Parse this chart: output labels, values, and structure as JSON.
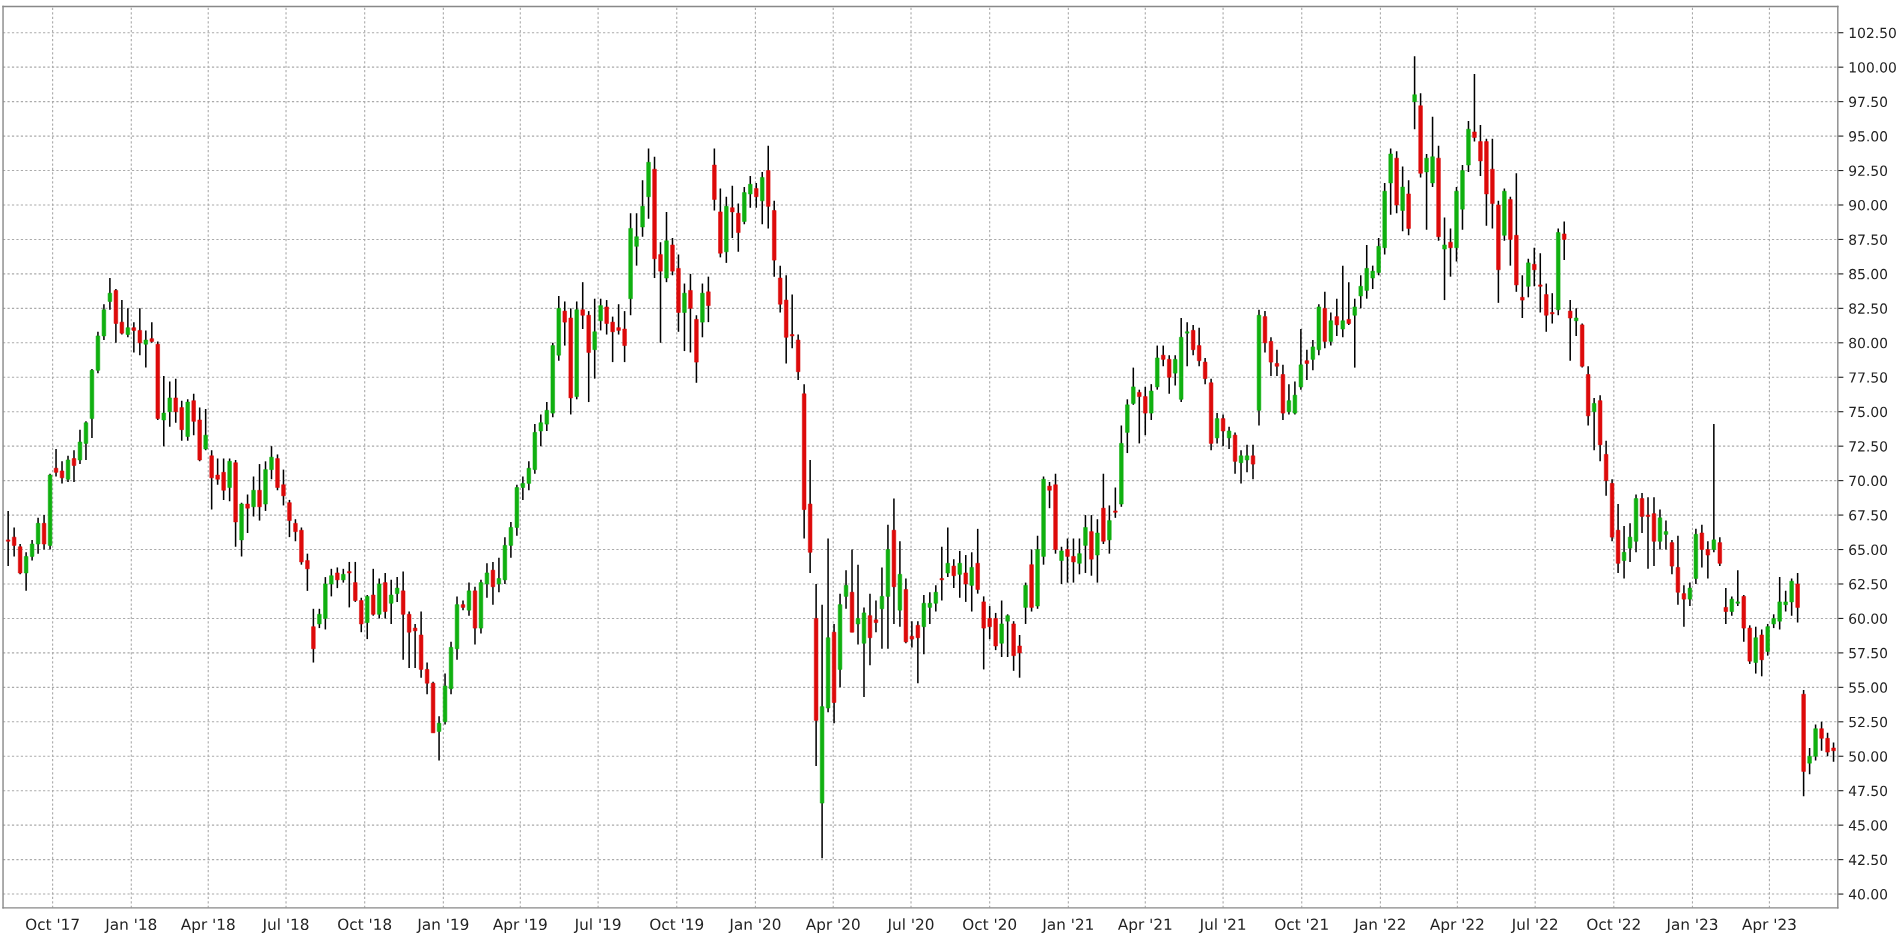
{
  "chart_data": {
    "type": "candlestick",
    "x": [
      "2017-08-10",
      "2017-08-17",
      "2017-08-24",
      "2017-08-31",
      "2017-09-07",
      "2017-09-14",
      "2017-09-21",
      "2017-09-28",
      "2017-10-05",
      "2017-10-12",
      "2017-10-19",
      "2017-10-26",
      "2017-11-02",
      "2017-11-09",
      "2017-11-16",
      "2017-11-23",
      "2017-11-30",
      "2017-12-07",
      "2017-12-14",
      "2017-12-21",
      "2017-12-28",
      "2018-01-04",
      "2018-01-11",
      "2018-01-18",
      "2018-01-25",
      "2018-02-01",
      "2018-02-08",
      "2018-02-15",
      "2018-02-22",
      "2018-03-01",
      "2018-03-08",
      "2018-03-15",
      "2018-03-22",
      "2018-03-29",
      "2018-04-05",
      "2018-04-12",
      "2018-04-19",
      "2018-04-26",
      "2018-05-03",
      "2018-05-10",
      "2018-05-17",
      "2018-05-24",
      "2018-05-31",
      "2018-06-07",
      "2018-06-14",
      "2018-06-21",
      "2018-06-28",
      "2018-07-05",
      "2018-07-12",
      "2018-07-19",
      "2018-07-26",
      "2018-08-02",
      "2018-08-09",
      "2018-08-16",
      "2018-08-23",
      "2018-08-30",
      "2018-09-06",
      "2018-09-13",
      "2018-09-20",
      "2018-09-27",
      "2018-10-04",
      "2018-10-11",
      "2018-10-18",
      "2018-10-25",
      "2018-11-01",
      "2018-11-08",
      "2018-11-15",
      "2018-11-22",
      "2018-11-29",
      "2018-12-06",
      "2018-12-13",
      "2018-12-20",
      "2018-12-27",
      "2019-01-03",
      "2019-01-10",
      "2019-01-17",
      "2019-01-24",
      "2019-01-31",
      "2019-02-07",
      "2019-02-14",
      "2019-02-21",
      "2019-02-28",
      "2019-03-07",
      "2019-03-14",
      "2019-03-21",
      "2019-03-28",
      "2019-04-04",
      "2019-04-11",
      "2019-04-18",
      "2019-04-25",
      "2019-05-02",
      "2019-05-09",
      "2019-05-16",
      "2019-05-23",
      "2019-05-30",
      "2019-06-06",
      "2019-06-13",
      "2019-06-20",
      "2019-06-27",
      "2019-07-04",
      "2019-07-11",
      "2019-07-18",
      "2019-07-25",
      "2019-08-01",
      "2019-08-08",
      "2019-08-15",
      "2019-08-22",
      "2019-08-29",
      "2019-09-05",
      "2019-09-12",
      "2019-09-19",
      "2019-09-26",
      "2019-10-03",
      "2019-10-10",
      "2019-10-17",
      "2019-10-24",
      "2019-10-31",
      "2019-11-07",
      "2019-11-14",
      "2019-11-21",
      "2019-11-28",
      "2019-12-05",
      "2019-12-12",
      "2019-12-19",
      "2019-12-26",
      "2020-01-02",
      "2020-01-09",
      "2020-01-16",
      "2020-01-23",
      "2020-01-30",
      "2020-02-06",
      "2020-02-13",
      "2020-02-20",
      "2020-02-27",
      "2020-03-05",
      "2020-03-12",
      "2020-03-19",
      "2020-03-26",
      "2020-04-02",
      "2020-04-09",
      "2020-04-16",
      "2020-04-23",
      "2020-04-30",
      "2020-05-07",
      "2020-05-14",
      "2020-05-21",
      "2020-05-28",
      "2020-06-04",
      "2020-06-11",
      "2020-06-18",
      "2020-06-25",
      "2020-07-02",
      "2020-07-09",
      "2020-07-16",
      "2020-07-23",
      "2020-07-30",
      "2020-08-06",
      "2020-08-13",
      "2020-08-20",
      "2020-08-27",
      "2020-09-03",
      "2020-09-10",
      "2020-09-17",
      "2020-09-24",
      "2020-10-01",
      "2020-10-08",
      "2020-10-15",
      "2020-10-22",
      "2020-10-29",
      "2020-11-05",
      "2020-11-12",
      "2020-11-19",
      "2020-11-26",
      "2020-12-03",
      "2020-12-10",
      "2020-12-17",
      "2020-12-24",
      "2020-12-31",
      "2021-01-07",
      "2021-01-14",
      "2021-01-21",
      "2021-01-28",
      "2021-02-04",
      "2021-02-11",
      "2021-02-18",
      "2021-02-25",
      "2021-03-04",
      "2021-03-11",
      "2021-03-18",
      "2021-03-25",
      "2021-04-01",
      "2021-04-08",
      "2021-04-15",
      "2021-04-22",
      "2021-04-29",
      "2021-05-06",
      "2021-05-13",
      "2021-05-20",
      "2021-05-27",
      "2021-06-03",
      "2021-06-10",
      "2021-06-17",
      "2021-06-24",
      "2021-07-01",
      "2021-07-08",
      "2021-07-15",
      "2021-07-22",
      "2021-07-29",
      "2021-08-05",
      "2021-08-12",
      "2021-08-19",
      "2021-08-26",
      "2021-09-02",
      "2021-09-09",
      "2021-09-16",
      "2021-09-23",
      "2021-09-30",
      "2021-10-07",
      "2021-10-14",
      "2021-10-21",
      "2021-10-28",
      "2021-11-04",
      "2021-11-11",
      "2021-11-18",
      "2021-11-25",
      "2021-12-02",
      "2021-12-09",
      "2021-12-16",
      "2021-12-23",
      "2021-12-30",
      "2022-01-06",
      "2022-01-13",
      "2022-01-20",
      "2022-01-27",
      "2022-02-03",
      "2022-02-10",
      "2022-02-17",
      "2022-02-24",
      "2022-03-03",
      "2022-03-10",
      "2022-03-17",
      "2022-03-24",
      "2022-03-31",
      "2022-04-07",
      "2022-04-14",
      "2022-04-21",
      "2022-04-28",
      "2022-05-05",
      "2022-05-12",
      "2022-05-19",
      "2022-05-26",
      "2022-06-02",
      "2022-06-09",
      "2022-06-16",
      "2022-06-23",
      "2022-06-30",
      "2022-07-07",
      "2022-07-14",
      "2022-07-21",
      "2022-07-28",
      "2022-08-04",
      "2022-08-11",
      "2022-08-18",
      "2022-08-25",
      "2022-09-01",
      "2022-09-08",
      "2022-09-15",
      "2022-09-22",
      "2022-09-29",
      "2022-10-06",
      "2022-10-13",
      "2022-10-20",
      "2022-10-27",
      "2022-11-03",
      "2022-11-10",
      "2022-11-17",
      "2022-11-24",
      "2022-12-01",
      "2022-12-08",
      "2022-12-15",
      "2022-12-22",
      "2022-12-29",
      "2023-01-05",
      "2023-01-12",
      "2023-01-19",
      "2023-01-26",
      "2023-02-02",
      "2023-02-09",
      "2023-02-16",
      "2023-02-23",
      "2023-03-02",
      "2023-03-09",
      "2023-03-16",
      "2023-03-23",
      "2023-03-30",
      "2023-04-06",
      "2023-04-13",
      "2023-04-20",
      "2023-04-27",
      "2023-05-04",
      "2023-05-11",
      "2023-05-18",
      "2023-05-25",
      "2023-06-01",
      "2023-06-08",
      "2023-06-15"
    ],
    "ohlc": [
      [
        65.7,
        67.8,
        63.8,
        65.6
      ],
      [
        65.9,
        66.6,
        64.5,
        65.3
      ],
      [
        65.2,
        65.4,
        63.2,
        63.3
      ],
      [
        63.3,
        64.8,
        62.0,
        64.5
      ],
      [
        64.5,
        65.7,
        64.2,
        65.4
      ],
      [
        65.4,
        67.3,
        64.7,
        66.9
      ],
      [
        66.9,
        67.5,
        65.0,
        65.4
      ],
      [
        65.3,
        70.5,
        65.0,
        70.4
      ],
      [
        70.9,
        72.3,
        70.3,
        70.6
      ],
      [
        70.7,
        71.4,
        69.8,
        70.2
      ],
      [
        70.1,
        71.8,
        69.9,
        71.5
      ],
      [
        71.6,
        72.2,
        69.9,
        71.1
      ],
      [
        71.5,
        73.7,
        71.2,
        72.8
      ],
      [
        72.7,
        74.3,
        71.5,
        74.2
      ],
      [
        74.5,
        78.1,
        73.1,
        78.0
      ],
      [
        78.0,
        80.8,
        77.8,
        80.5
      ],
      [
        80.5,
        82.8,
        80.2,
        82.4
      ],
      [
        83.0,
        84.7,
        82.4,
        83.6
      ],
      [
        83.8,
        83.9,
        80.0,
        81.4
      ],
      [
        81.5,
        83.1,
        80.6,
        80.7
      ],
      [
        80.6,
        82.5,
        80.4,
        81.1
      ],
      [
        81.1,
        81.5,
        79.3,
        80.9
      ],
      [
        80.9,
        82.5,
        79.1,
        80.0
      ],
      [
        79.9,
        80.9,
        78.2,
        80.2
      ],
      [
        80.3,
        81.5,
        80.0,
        80.1
      ],
      [
        79.9,
        80.1,
        74.4,
        74.5
      ],
      [
        74.4,
        77.6,
        72.5,
        74.9
      ],
      [
        75.0,
        77.2,
        73.9,
        76.0
      ],
      [
        76.0,
        77.4,
        74.2,
        75.0
      ],
      [
        75.3,
        75.8,
        72.9,
        73.7
      ],
      [
        73.2,
        75.9,
        72.9,
        75.7
      ],
      [
        75.8,
        76.3,
        73.3,
        74.3
      ],
      [
        74.4,
        75.3,
        71.4,
        71.5
      ],
      [
        72.3,
        75.2,
        72.2,
        73.3
      ],
      [
        71.8,
        72.2,
        67.9,
        70.2
      ],
      [
        70.4,
        71.6,
        69.7,
        70.1
      ],
      [
        70.6,
        71.6,
        68.6,
        69.3
      ],
      [
        69.5,
        71.6,
        68.5,
        71.4
      ],
      [
        71.3,
        71.5,
        65.2,
        67.0
      ],
      [
        65.7,
        68.4,
        64.5,
        68.3
      ],
      [
        68.3,
        69.0,
        66.2,
        68.0
      ],
      [
        68.1,
        70.3,
        67.4,
        69.3
      ],
      [
        69.3,
        71.2,
        67.1,
        68.1
      ],
      [
        68.3,
        71.4,
        67.8,
        70.8
      ],
      [
        70.8,
        72.5,
        70.1,
        71.7
      ],
      [
        71.6,
        71.9,
        69.3,
        69.5
      ],
      [
        69.7,
        70.8,
        68.2,
        68.9
      ],
      [
        68.4,
        68.6,
        65.9,
        67.1
      ],
      [
        66.9,
        67.2,
        65.6,
        66.3
      ],
      [
        66.4,
        66.6,
        63.9,
        64.1
      ],
      [
        64.2,
        64.7,
        62.0,
        63.6
      ],
      [
        59.4,
        60.7,
        56.8,
        57.8
      ],
      [
        59.6,
        60.7,
        59.3,
        60.3
      ],
      [
        60.0,
        63.0,
        59.2,
        62.5
      ],
      [
        62.5,
        63.6,
        61.6,
        63.1
      ],
      [
        63.3,
        63.7,
        62.2,
        62.8
      ],
      [
        62.8,
        63.6,
        62.6,
        63.2
      ],
      [
        63.4,
        64.1,
        60.8,
        63.3
      ],
      [
        62.6,
        64.1,
        61.2,
        61.3
      ],
      [
        61.3,
        61.5,
        59.0,
        59.6
      ],
      [
        59.7,
        61.7,
        58.5,
        61.6
      ],
      [
        61.7,
        63.6,
        60.2,
        60.3
      ],
      [
        60.3,
        62.9,
        60.0,
        62.5
      ],
      [
        62.6,
        63.3,
        60.0,
        60.5
      ],
      [
        61.1,
        62.8,
        59.6,
        61.7
      ],
      [
        61.8,
        63.0,
        61.2,
        62.2
      ],
      [
        62.0,
        63.4,
        57.0,
        60.3
      ],
      [
        60.3,
        60.5,
        56.4,
        59.0
      ],
      [
        59.3,
        59.6,
        56.4,
        59.1
      ],
      [
        58.8,
        60.5,
        55.7,
        56.3
      ],
      [
        56.3,
        56.8,
        54.5,
        55.3
      ],
      [
        55.3,
        55.4,
        51.7,
        51.7
      ],
      [
        51.8,
        52.9,
        49.7,
        52.4
      ],
      [
        52.5,
        56.0,
        52.3,
        55.1
      ],
      [
        54.9,
        58.3,
        54.5,
        57.9
      ],
      [
        57.8,
        61.6,
        57.0,
        61.0
      ],
      [
        61.0,
        61.3,
        60.6,
        60.8
      ],
      [
        60.6,
        62.6,
        60.2,
        62.0
      ],
      [
        62.0,
        62.3,
        58.1,
        59.3
      ],
      [
        59.3,
        62.8,
        58.9,
        62.6
      ],
      [
        62.5,
        64.0,
        61.5,
        63.3
      ],
      [
        63.5,
        64.1,
        61.0,
        62.3
      ],
      [
        62.5,
        64.4,
        61.9,
        62.9
      ],
      [
        62.8,
        65.9,
        62.5,
        65.3
      ],
      [
        65.3,
        67.0,
        64.4,
        66.6
      ],
      [
        66.6,
        69.7,
        66.0,
        69.5
      ],
      [
        69.5,
        70.3,
        68.6,
        69.8
      ],
      [
        69.8,
        71.4,
        69.3,
        70.9
      ],
      [
        70.8,
        74.1,
        70.5,
        73.5
      ],
      [
        73.6,
        74.8,
        72.5,
        74.2
      ],
      [
        74.1,
        75.7,
        73.6,
        75.1
      ],
      [
        74.9,
        80.0,
        74.6,
        79.8
      ],
      [
        79.1,
        83.4,
        78.7,
        82.5
      ],
      [
        82.3,
        83.0,
        79.8,
        81.5
      ],
      [
        81.8,
        82.5,
        74.8,
        76.0
      ],
      [
        76.1,
        83.0,
        75.9,
        82.4
      ],
      [
        82.4,
        84.4,
        81.0,
        82.0
      ],
      [
        82.0,
        82.3,
        75.7,
        79.3
      ],
      [
        79.5,
        83.2,
        77.4,
        80.8
      ],
      [
        81.6,
        83.2,
        80.9,
        82.7
      ],
      [
        82.6,
        83.1,
        80.6,
        81.4
      ],
      [
        81.5,
        81.9,
        78.6,
        80.8
      ],
      [
        81.1,
        82.8,
        80.6,
        80.9
      ],
      [
        81.0,
        82.3,
        78.6,
        79.8
      ],
      [
        83.2,
        89.4,
        82.0,
        88.3
      ],
      [
        87.0,
        89.4,
        85.6,
        87.7
      ],
      [
        88.4,
        91.8,
        87.7,
        89.9
      ],
      [
        90.6,
        94.1,
        89.0,
        93.1
      ],
      [
        92.6,
        93.5,
        84.7,
        86.1
      ],
      [
        86.4,
        87.3,
        80.0,
        85.2
      ],
      [
        84.7,
        89.5,
        84.4,
        87.4
      ],
      [
        87.1,
        87.6,
        84.9,
        85.2
      ],
      [
        85.4,
        86.4,
        80.8,
        82.2
      ],
      [
        82.2,
        84.3,
        79.4,
        83.6
      ],
      [
        83.8,
        85.0,
        79.3,
        82.5
      ],
      [
        81.7,
        82.0,
        77.1,
        78.6
      ],
      [
        81.5,
        84.3,
        80.4,
        83.6
      ],
      [
        83.7,
        84.8,
        81.5,
        82.7
      ],
      [
        92.9,
        94.1,
        89.6,
        90.4
      ],
      [
        89.5,
        91.2,
        86.2,
        86.5
      ],
      [
        86.6,
        90.6,
        85.8,
        89.9
      ],
      [
        89.8,
        91.4,
        87.6,
        89.5
      ],
      [
        89.4,
        90.1,
        86.6,
        88.0
      ],
      [
        88.8,
        91.3,
        88.6,
        90.9
      ],
      [
        90.8,
        92.1,
        89.8,
        91.5
      ],
      [
        91.2,
        91.6,
        89.8,
        90.6
      ],
      [
        90.3,
        92.4,
        88.6,
        92.0
      ],
      [
        92.5,
        94.3,
        88.3,
        89.9
      ],
      [
        89.6,
        90.3,
        84.8,
        86.0
      ],
      [
        84.7,
        85.6,
        82.2,
        82.8
      ],
      [
        83.1,
        84.9,
        78.5,
        80.4
      ],
      [
        80.6,
        83.5,
        79.6,
        80.5
      ],
      [
        80.2,
        80.6,
        77.3,
        77.9
      ],
      [
        76.3,
        77.0,
        65.8,
        67.9
      ],
      [
        68.3,
        71.5,
        63.3,
        64.8
      ],
      [
        60.0,
        62.5,
        49.3,
        52.6
      ],
      [
        46.6,
        61.0,
        42.6,
        53.6
      ],
      [
        53.5,
        65.8,
        53.2,
        58.6
      ],
      [
        59.0,
        59.6,
        52.4,
        53.9
      ],
      [
        56.3,
        61.8,
        55.0,
        61.0
      ],
      [
        61.6,
        63.5,
        60.7,
        62.4
      ],
      [
        61.9,
        65.0,
        59.0,
        59.0
      ],
      [
        59.6,
        63.9,
        58.1,
        60.0
      ],
      [
        58.2,
        60.8,
        54.3,
        60.4
      ],
      [
        60.2,
        61.8,
        56.6,
        58.6
      ],
      [
        59.9,
        61.3,
        59.0,
        59.7
      ],
      [
        60.7,
        63.7,
        57.8,
        61.6
      ],
      [
        61.6,
        66.8,
        57.8,
        65.0
      ],
      [
        66.4,
        68.7,
        59.6,
        62.3
      ],
      [
        60.6,
        65.6,
        59.4,
        63.2
      ],
      [
        62.1,
        62.9,
        58.2,
        58.3
      ],
      [
        58.7,
        59.8,
        57.9,
        58.5
      ],
      [
        59.5,
        59.8,
        55.3,
        58.6
      ],
      [
        59.4,
        61.7,
        57.4,
        61.1
      ],
      [
        60.8,
        61.9,
        59.6,
        61.1
      ],
      [
        61.1,
        62.4,
        60.5,
        61.9
      ],
      [
        62.9,
        65.2,
        61.3,
        62.8
      ],
      [
        63.3,
        66.6,
        63.0,
        64.0
      ],
      [
        63.8,
        64.3,
        62.2,
        63.1
      ],
      [
        63.2,
        64.9,
        61.5,
        64.0
      ],
      [
        63.3,
        64.6,
        61.2,
        62.5
      ],
      [
        62.4,
        64.8,
        60.5,
        63.7
      ],
      [
        64.0,
        66.5,
        61.8,
        62.1
      ],
      [
        61.2,
        61.6,
        56.3,
        59.3
      ],
      [
        60.0,
        60.9,
        58.5,
        59.4
      ],
      [
        60.0,
        60.4,
        57.7,
        58.0
      ],
      [
        58.2,
        61.3,
        57.2,
        59.6
      ],
      [
        59.8,
        60.3,
        57.2,
        60.2
      ],
      [
        59.6,
        59.8,
        56.2,
        57.3
      ],
      [
        58.0,
        58.8,
        55.7,
        57.5
      ],
      [
        60.8,
        62.6,
        59.6,
        62.4
      ],
      [
        63.9,
        65.0,
        60.5,
        60.8
      ],
      [
        60.9,
        66.0,
        60.7,
        65.0
      ],
      [
        64.5,
        70.3,
        63.9,
        70.1
      ],
      [
        69.6,
        69.9,
        68.0,
        69.3
      ],
      [
        69.7,
        70.5,
        64.7,
        65.0
      ],
      [
        64.2,
        65.2,
        62.5,
        64.9
      ],
      [
        65.0,
        65.8,
        62.6,
        64.5
      ],
      [
        64.5,
        65.8,
        62.6,
        64.1
      ],
      [
        64.0,
        65.8,
        63.2,
        64.7
      ],
      [
        65.3,
        67.5,
        63.3,
        66.6
      ],
      [
        66.3,
        67.5,
        63.1,
        64.3
      ],
      [
        64.6,
        67.2,
        62.6,
        66.2
      ],
      [
        68.0,
        70.5,
        65.4,
        65.6
      ],
      [
        65.7,
        68.2,
        64.7,
        67.1
      ],
      [
        67.8,
        69.5,
        67.3,
        67.7
      ],
      [
        68.3,
        74.0,
        68.1,
        72.7
      ],
      [
        73.5,
        75.9,
        72.0,
        75.5
      ],
      [
        75.6,
        78.2,
        75.5,
        76.8
      ],
      [
        76.4,
        76.6,
        72.7,
        76.1
      ],
      [
        76.1,
        76.8,
        73.3,
        74.9
      ],
      [
        74.9,
        77.0,
        74.4,
        76.5
      ],
      [
        76.8,
        79.8,
        76.6,
        78.9
      ],
      [
        79.1,
        79.8,
        78.3,
        78.8
      ],
      [
        78.8,
        79.1,
        76.3,
        77.5
      ],
      [
        77.8,
        79.1,
        76.9,
        78.8
      ],
      [
        75.9,
        81.8,
        75.7,
        80.4
      ],
      [
        80.7,
        81.5,
        78.3,
        80.8
      ],
      [
        80.9,
        81.3,
        79.1,
        79.5
      ],
      [
        79.8,
        81.1,
        78.3,
        78.7
      ],
      [
        78.6,
        78.9,
        77.0,
        77.4
      ],
      [
        77.1,
        77.4,
        72.2,
        72.7
      ],
      [
        73.1,
        74.9,
        72.7,
        74.5
      ],
      [
        74.5,
        74.8,
        72.5,
        73.6
      ],
      [
        73.1,
        73.9,
        72.3,
        73.6
      ],
      [
        73.3,
        73.5,
        70.5,
        71.4
      ],
      [
        71.3,
        72.2,
        69.8,
        71.8
      ],
      [
        71.5,
        72.6,
        70.6,
        71.8
      ],
      [
        71.8,
        72.6,
        70.1,
        71.2
      ],
      [
        75.1,
        82.4,
        74.0,
        82.0
      ],
      [
        81.9,
        82.3,
        79.3,
        80.0
      ],
      [
        80.1,
        80.4,
        77.6,
        78.6
      ],
      [
        78.5,
        79.5,
        77.6,
        78.3
      ],
      [
        77.7,
        78.4,
        74.4,
        74.9
      ],
      [
        75.0,
        77.0,
        74.8,
        75.8
      ],
      [
        74.9,
        77.2,
        74.8,
        76.2
      ],
      [
        76.8,
        81.0,
        76.6,
        78.4
      ],
      [
        78.7,
        79.5,
        77.3,
        78.5
      ],
      [
        78.8,
        80.2,
        78.0,
        79.7
      ],
      [
        79.5,
        82.8,
        79.1,
        82.6
      ],
      [
        82.5,
        83.7,
        79.6,
        80.1
      ],
      [
        80.1,
        82.2,
        79.8,
        81.6
      ],
      [
        81.9,
        83.2,
        80.5,
        81.3
      ],
      [
        81.0,
        85.6,
        80.4,
        81.6
      ],
      [
        81.7,
        84.4,
        81.3,
        81.4
      ],
      [
        82.0,
        83.2,
        78.2,
        82.6
      ],
      [
        83.4,
        84.9,
        82.5,
        84.1
      ],
      [
        83.8,
        87.1,
        83.2,
        85.4
      ],
      [
        84.7,
        85.6,
        83.9,
        85.2
      ],
      [
        85.1,
        87.6,
        84.9,
        87.0
      ],
      [
        86.9,
        91.6,
        86.4,
        91.0
      ],
      [
        91.6,
        94.1,
        89.3,
        93.7
      ],
      [
        93.4,
        93.9,
        89.4,
        90.0
      ],
      [
        89.6,
        92.8,
        88.1,
        91.3
      ],
      [
        90.8,
        91.8,
        87.8,
        88.3
      ],
      [
        97.5,
        100.8,
        95.5,
        98.0
      ],
      [
        97.2,
        98.1,
        92.0,
        92.3
      ],
      [
        92.4,
        93.7,
        88.2,
        93.4
      ],
      [
        91.6,
        96.4,
        91.3,
        93.5
      ],
      [
        93.4,
        94.3,
        87.4,
        87.7
      ],
      [
        86.8,
        89.1,
        83.1,
        87.1
      ],
      [
        87.3,
        88.3,
        84.8,
        86.9
      ],
      [
        86.9,
        91.3,
        85.9,
        91.0
      ],
      [
        89.7,
        92.9,
        88.2,
        92.5
      ],
      [
        92.9,
        96.1,
        92.4,
        95.5
      ],
      [
        95.3,
        99.5,
        94.6,
        94.9
      ],
      [
        94.6,
        95.8,
        92.1,
        93.2
      ],
      [
        94.6,
        94.8,
        88.5,
        90.8
      ],
      [
        92.6,
        94.8,
        88.3,
        90.1
      ],
      [
        90.0,
        90.3,
        82.9,
        85.3
      ],
      [
        87.8,
        91.2,
        87.4,
        91.0
      ],
      [
        90.4,
        90.6,
        85.6,
        87.5
      ],
      [
        87.8,
        92.3,
        83.7,
        84.2
      ],
      [
        83.3,
        84.9,
        81.8,
        83.1
      ],
      [
        84.1,
        86.1,
        83.3,
        85.8
      ],
      [
        85.7,
        86.9,
        84.1,
        85.3
      ],
      [
        84.2,
        86.5,
        82.2,
        84.1
      ],
      [
        83.5,
        84.3,
        80.8,
        82.0
      ],
      [
        82.2,
        83.6,
        81.4,
        82.1
      ],
      [
        82.4,
        88.3,
        82.0,
        88.0
      ],
      [
        87.9,
        88.8,
        86.0,
        87.5
      ],
      [
        82.3,
        83.1,
        78.7,
        81.8
      ],
      [
        81.6,
        82.5,
        80.5,
        81.8
      ],
      [
        81.3,
        81.4,
        78.2,
        78.3
      ],
      [
        77.7,
        78.3,
        74.0,
        74.7
      ],
      [
        75.0,
        76.0,
        72.2,
        75.6
      ],
      [
        75.8,
        76.2,
        71.4,
        72.6
      ],
      [
        71.9,
        72.9,
        68.9,
        70.0
      ],
      [
        69.8,
        70.1,
        65.6,
        65.9
      ],
      [
        66.4,
        68.3,
        63.3,
        64.0
      ],
      [
        64.2,
        66.7,
        62.9,
        64.8
      ],
      [
        65.1,
        66.9,
        64.1,
        65.9
      ],
      [
        65.6,
        69.0,
        64.8,
        68.7
      ],
      [
        68.7,
        69.1,
        66.2,
        67.4
      ],
      [
        67.5,
        68.8,
        63.6,
        67.4
      ],
      [
        67.6,
        68.8,
        63.8,
        65.6
      ],
      [
        65.6,
        67.9,
        65.0,
        67.3
      ],
      [
        66.1,
        67.1,
        65.0,
        66.3
      ],
      [
        65.5,
        65.7,
        63.2,
        63.8
      ],
      [
        63.7,
        66.0,
        61.0,
        61.9
      ],
      [
        61.8,
        62.4,
        59.4,
        61.4
      ],
      [
        61.4,
        62.6,
        60.9,
        62.2
      ],
      [
        62.9,
        66.5,
        62.5,
        66.1
      ],
      [
        66.2,
        66.8,
        63.7,
        65.0
      ],
      [
        65.0,
        65.6,
        62.9,
        64.6
      ],
      [
        65.0,
        74.1,
        64.8,
        65.7
      ],
      [
        65.5,
        65.9,
        63.8,
        64.0
      ],
      [
        60.8,
        62.2,
        59.6,
        60.5
      ],
      [
        60.5,
        61.6,
        60.2,
        61.4
      ],
      [
        61.1,
        63.5,
        60.9,
        61.2
      ],
      [
        61.6,
        61.7,
        58.3,
        59.3
      ],
      [
        59.3,
        59.5,
        56.7,
        56.9
      ],
      [
        56.8,
        59.4,
        56.0,
        58.6
      ],
      [
        58.8,
        59.2,
        55.8,
        57.0
      ],
      [
        57.6,
        59.6,
        57.3,
        59.4
      ],
      [
        59.6,
        60.3,
        59.3,
        60.0
      ],
      [
        59.8,
        63.0,
        59.2,
        61.2
      ],
      [
        61.0,
        62.0,
        60.5,
        61.2
      ],
      [
        61.2,
        62.9,
        60.2,
        62.7
      ],
      [
        62.5,
        63.3,
        59.7,
        60.8
      ],
      [
        54.5,
        54.8,
        47.1,
        48.9
      ],
      [
        49.5,
        50.6,
        48.7,
        50.0
      ],
      [
        50.0,
        52.3,
        49.7,
        52.0
      ],
      [
        52.0,
        52.5,
        50.4,
        51.3
      ],
      [
        51.3,
        51.7,
        50.0,
        50.3
      ],
      [
        50.6,
        51.0,
        49.6,
        50.4
      ]
    ],
    "colors": [
      "#dd0a0a",
      "#dd0a0a",
      "#dd0a0a",
      "#10b010",
      "#10b010",
      "#10b010",
      "#dd0a0a",
      "#10b010",
      "#dd0a0a",
      "#dd0a0a",
      "#10b010",
      "#dd0a0a",
      "#10b010",
      "#10b010",
      "#10b010",
      "#10b010",
      "#10b010",
      "#10b010",
      "#dd0a0a",
      "#dd0a0a",
      "#10b010",
      "#dd0a0a",
      "#dd0a0a",
      "#10b010",
      "#dd0a0a",
      "#dd0a0a",
      "#10b010",
      "#10b010",
      "#dd0a0a",
      "#dd0a0a",
      "#10b010",
      "#dd0a0a",
      "#dd0a0a",
      "#10b010",
      "#dd0a0a",
      "#dd0a0a",
      "#dd0a0a",
      "#10b010",
      "#dd0a0a",
      "#10b010",
      "#dd0a0a",
      "#10b010",
      "#dd0a0a",
      "#10b010",
      "#10b010",
      "#dd0a0a",
      "#dd0a0a",
      "#dd0a0a",
      "#dd0a0a",
      "#dd0a0a",
      "#dd0a0a",
      "#dd0a0a",
      "#10b010",
      "#10b010",
      "#10b010",
      "#dd0a0a",
      "#10b010",
      "#dd0a0a",
      "#dd0a0a",
      "#dd0a0a",
      "#10b010",
      "#dd0a0a",
      "#10b010",
      "#dd0a0a",
      "#10b010",
      "#10b010",
      "#dd0a0a",
      "#dd0a0a",
      "#dd0a0a",
      "#dd0a0a",
      "#dd0a0a",
      "#dd0a0a",
      "#10b010",
      "#10b010",
      "#10b010",
      "#10b010",
      "#dd0a0a",
      "#10b010",
      "#dd0a0a",
      "#10b010",
      "#10b010",
      "#dd0a0a",
      "#10b010",
      "#10b010",
      "#10b010",
      "#10b010",
      "#10b010",
      "#10b010",
      "#10b010",
      "#10b010",
      "#10b010",
      "#10b010",
      "#10b010",
      "#dd0a0a",
      "#dd0a0a",
      "#10b010",
      "#dd0a0a",
      "#dd0a0a",
      "#10b010",
      "#10b010",
      "#dd0a0a",
      "#dd0a0a",
      "#dd0a0a",
      "#dd0a0a",
      "#10b010",
      "#10b010",
      "#10b010",
      "#10b010",
      "#dd0a0a",
      "#dd0a0a",
      "#10b010",
      "#dd0a0a",
      "#dd0a0a",
      "#10b010",
      "#dd0a0a",
      "#dd0a0a",
      "#10b010",
      "#dd0a0a",
      "#dd0a0a",
      "#dd0a0a",
      "#10b010",
      "#dd0a0a",
      "#dd0a0a",
      "#10b010",
      "#10b010",
      "#dd0a0a",
      "#10b010",
      "#dd0a0a",
      "#dd0a0a",
      "#dd0a0a",
      "#dd0a0a",
      "#dd0a0a",
      "#dd0a0a",
      "#dd0a0a",
      "#dd0a0a",
      "#dd0a0a",
      "#10b010",
      "#10b010",
      "#dd0a0a",
      "#10b010",
      "#10b010",
      "#dd0a0a",
      "#10b010",
      "#10b010",
      "#dd0a0a",
      "#dd0a0a",
      "#10b010",
      "#10b010",
      "#dd0a0a",
      "#10b010",
      "#dd0a0a",
      "#dd0a0a",
      "#dd0a0a",
      "#10b010",
      "#10b010",
      "#10b010",
      "#dd0a0a",
      "#10b010",
      "#dd0a0a",
      "#10b010",
      "#dd0a0a",
      "#10b010",
      "#dd0a0a",
      "#dd0a0a",
      "#dd0a0a",
      "#dd0a0a",
      "#10b010",
      "#10b010",
      "#dd0a0a",
      "#dd0a0a",
      "#10b010",
      "#dd0a0a",
      "#10b010",
      "#10b010",
      "#dd0a0a",
      "#dd0a0a",
      "#10b010",
      "#dd0a0a",
      "#dd0a0a",
      "#10b010",
      "#10b010",
      "#dd0a0a",
      "#10b010",
      "#dd0a0a",
      "#10b010",
      "#dd0a0a",
      "#10b010",
      "#10b010",
      "#10b010",
      "#dd0a0a",
      "#dd0a0a",
      "#10b010",
      "#10b010",
      "#dd0a0a",
      "#dd0a0a",
      "#10b010",
      "#10b010",
      "#10b010",
      "#dd0a0a",
      "#dd0a0a",
      "#dd0a0a",
      "#dd0a0a",
      "#10b010",
      "#dd0a0a",
      "#10b010",
      "#dd0a0a",
      "#10b010",
      "#10b010",
      "#dd0a0a",
      "#10b010",
      "#dd0a0a",
      "#dd0a0a",
      "#dd0a0a",
      "#dd0a0a",
      "#10b010",
      "#10b010",
      "#10b010",
      "#dd0a0a",
      "#10b010",
      "#10b010",
      "#dd0a0a",
      "#10b010",
      "#dd0a0a",
      "#10b010",
      "#dd0a0a",
      "#10b010",
      "#10b010",
      "#10b010",
      "#10b010",
      "#10b010",
      "#10b010",
      "#10b010",
      "#dd0a0a",
      "#10b010",
      "#dd0a0a",
      "#10b010",
      "#dd0a0a",
      "#10b010",
      "#10b010",
      "#dd0a0a",
      "#10b010",
      "#dd0a0a",
      "#10b010",
      "#10b010",
      "#10b010",
      "#dd0a0a",
      "#dd0a0a",
      "#dd0a0a",
      "#dd0a0a",
      "#dd0a0a",
      "#10b010",
      "#dd0a0a",
      "#dd0a0a",
      "#dd0a0a",
      "#10b010",
      "#dd0a0a",
      "#dd0a0a",
      "#dd0a0a",
      "#dd0a0a",
      "#10b010",
      "#dd0a0a",
      "#dd0a0a",
      "#10b010",
      "#dd0a0a",
      "#dd0a0a",
      "#10b010",
      "#dd0a0a",
      "#dd0a0a",
      "#dd0a0a",
      "#dd0a0a",
      "#10b010",
      "#10b010",
      "#10b010",
      "#dd0a0a",
      "#dd0a0a",
      "#dd0a0a",
      "#10b010",
      "#10b010",
      "#dd0a0a",
      "#dd0a0a",
      "#dd0a0a",
      "#10b010",
      "#10b010",
      "#dd0a0a",
      "#dd0a0a",
      "#10b010",
      "#dd0a0a",
      "#dd0a0a",
      "#10b010",
      "#10b010",
      "#dd0a0a",
      "#dd0a0a",
      "#10b010",
      "#dd0a0a",
      "#10b010",
      "#10b010",
      "#10b010",
      "#10b010",
      "#10b010",
      "#dd0a0a",
      "#dd0a0a",
      "#10b010",
      "#10b010",
      "#dd0a0a",
      "#dd0a0a",
      "#dd0a0a"
    ],
    "xlim": [
      "2017-08-04",
      "2023-06-20"
    ],
    "xticks": [
      {
        "value": "2017-10-01",
        "label": "Oct '17"
      },
      {
        "value": "2018-01-01",
        "label": "Jan '18"
      },
      {
        "value": "2018-04-01",
        "label": "Apr '18"
      },
      {
        "value": "2018-07-01",
        "label": "Jul '18"
      },
      {
        "value": "2018-10-01",
        "label": "Oct '18"
      },
      {
        "value": "2019-01-01",
        "label": "Jan '19"
      },
      {
        "value": "2019-04-01",
        "label": "Apr '19"
      },
      {
        "value": "2019-07-01",
        "label": "Jul '19"
      },
      {
        "value": "2019-10-01",
        "label": "Oct '19"
      },
      {
        "value": "2020-01-01",
        "label": "Jan '20"
      },
      {
        "value": "2020-04-01",
        "label": "Apr '20"
      },
      {
        "value": "2020-07-01",
        "label": "Jul '20"
      },
      {
        "value": "2020-10-01",
        "label": "Oct '20"
      },
      {
        "value": "2021-01-01",
        "label": "Jan '21"
      },
      {
        "value": "2021-04-01",
        "label": "Apr '21"
      },
      {
        "value": "2021-07-01",
        "label": "Jul '21"
      },
      {
        "value": "2021-10-01",
        "label": "Oct '21"
      },
      {
        "value": "2022-01-01",
        "label": "Jan '22"
      },
      {
        "value": "2022-04-01",
        "label": "Apr '22"
      },
      {
        "value": "2022-07-01",
        "label": "Jul '22"
      },
      {
        "value": "2022-10-01",
        "label": "Oct '22"
      },
      {
        "value": "2023-01-01",
        "label": "Jan '23"
      },
      {
        "value": "2023-04-01",
        "label": "Apr '23"
      }
    ],
    "ylim": [
      39.0,
      104.4
    ],
    "yticks": [
      {
        "value": 40,
        "label": "40.00"
      },
      {
        "value": 42.5,
        "label": "42.50"
      },
      {
        "value": 45,
        "label": "45.00"
      },
      {
        "value": 47.5,
        "label": "47.50"
      },
      {
        "value": 50,
        "label": "50.00"
      },
      {
        "value": 52.5,
        "label": "52.50"
      },
      {
        "value": 55,
        "label": "55.00"
      },
      {
        "value": 57.5,
        "label": "57.50"
      },
      {
        "value": 60,
        "label": "60.00"
      },
      {
        "value": 62.5,
        "label": "62.50"
      },
      {
        "value": 65,
        "label": "65.00"
      },
      {
        "value": 67.5,
        "label": "67.50"
      },
      {
        "value": 70,
        "label": "70.00"
      },
      {
        "value": 72.5,
        "label": "72.50"
      },
      {
        "value": 75,
        "label": "75.00"
      },
      {
        "value": 77.5,
        "label": "77.50"
      },
      {
        "value": 80,
        "label": "80.00"
      },
      {
        "value": 82.5,
        "label": "82.50"
      },
      {
        "value": 85,
        "label": "85.00"
      },
      {
        "value": 87.5,
        "label": "87.50"
      },
      {
        "value": 90,
        "label": "90.00"
      },
      {
        "value": 92.5,
        "label": "92.50"
      },
      {
        "value": 95,
        "label": "95.00"
      },
      {
        "value": 97.5,
        "label": "97.50"
      },
      {
        "value": 100,
        "label": "100.00"
      },
      {
        "value": 102.5,
        "label": "102.50"
      }
    ],
    "grid": true
  }
}
